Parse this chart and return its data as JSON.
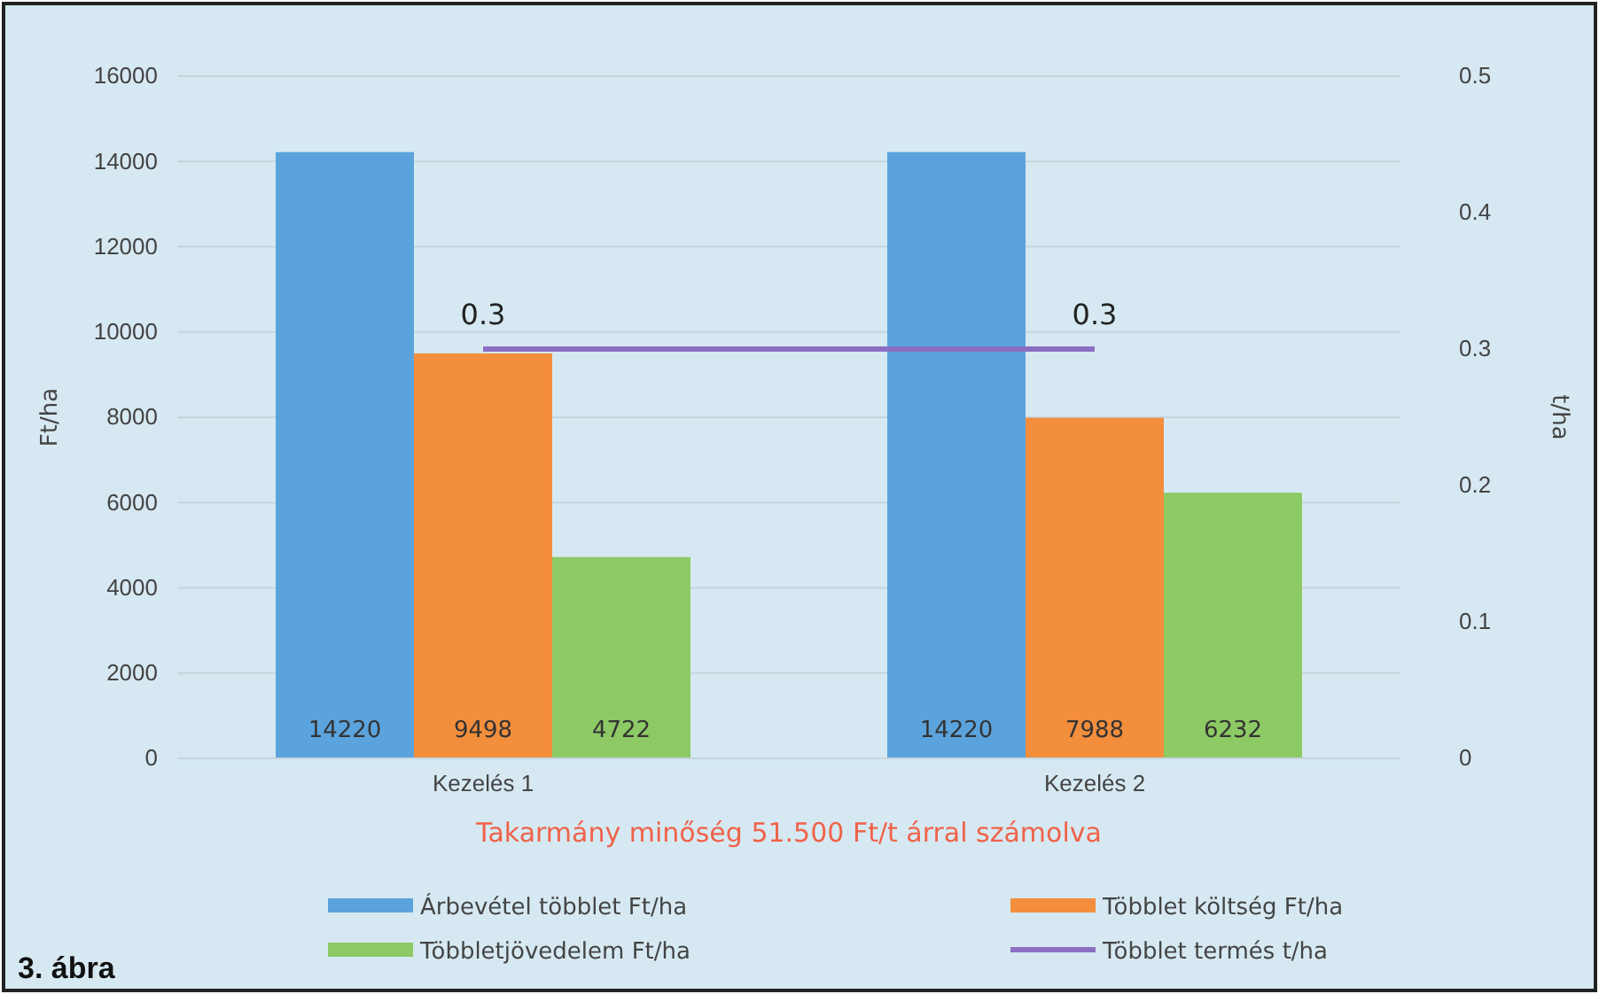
{
  "chart_data": {
    "type": "bar",
    "subtitle": "Takarmány minőség 51.500 Ft/t árral számolva",
    "ylabel": "Ft/ha",
    "y2label": "t/ha",
    "categories": [
      "Kezelés 1",
      "Kezelés 2"
    ],
    "series": [
      {
        "name": "Árbevétel többlet Ft/ha",
        "color": "#5ba3dc",
        "values": [
          14220,
          14220
        ]
      },
      {
        "name": "Többlet költség Ft/ha",
        "color": "#f28e3c",
        "values": [
          9498,
          7988
        ]
      },
      {
        "name": "Többletjövedelem Ft/ha",
        "color": "#8dc965",
        "values": [
          4722,
          6232
        ]
      },
      {
        "name": "Többlet termés t/ha",
        "type": "line",
        "axis": "y2",
        "color": "#8c6fc4",
        "values": [
          0.3,
          0.3
        ]
      }
    ],
    "ylim": [
      0,
      16000
    ],
    "yticks": [
      0,
      2000,
      4000,
      6000,
      8000,
      10000,
      12000,
      14000,
      16000
    ],
    "y2lim": [
      0,
      0.5
    ],
    "y2ticks": [
      {
        "value": 0,
        "label": "0"
      },
      0.1,
      0.2,
      0.3,
      0.4,
      0.5
    ],
    "grid": "y",
    "legend": "bottom",
    "data_labels": true,
    "marker": "none",
    "annotations": [
      "3. ábra"
    ]
  }
}
